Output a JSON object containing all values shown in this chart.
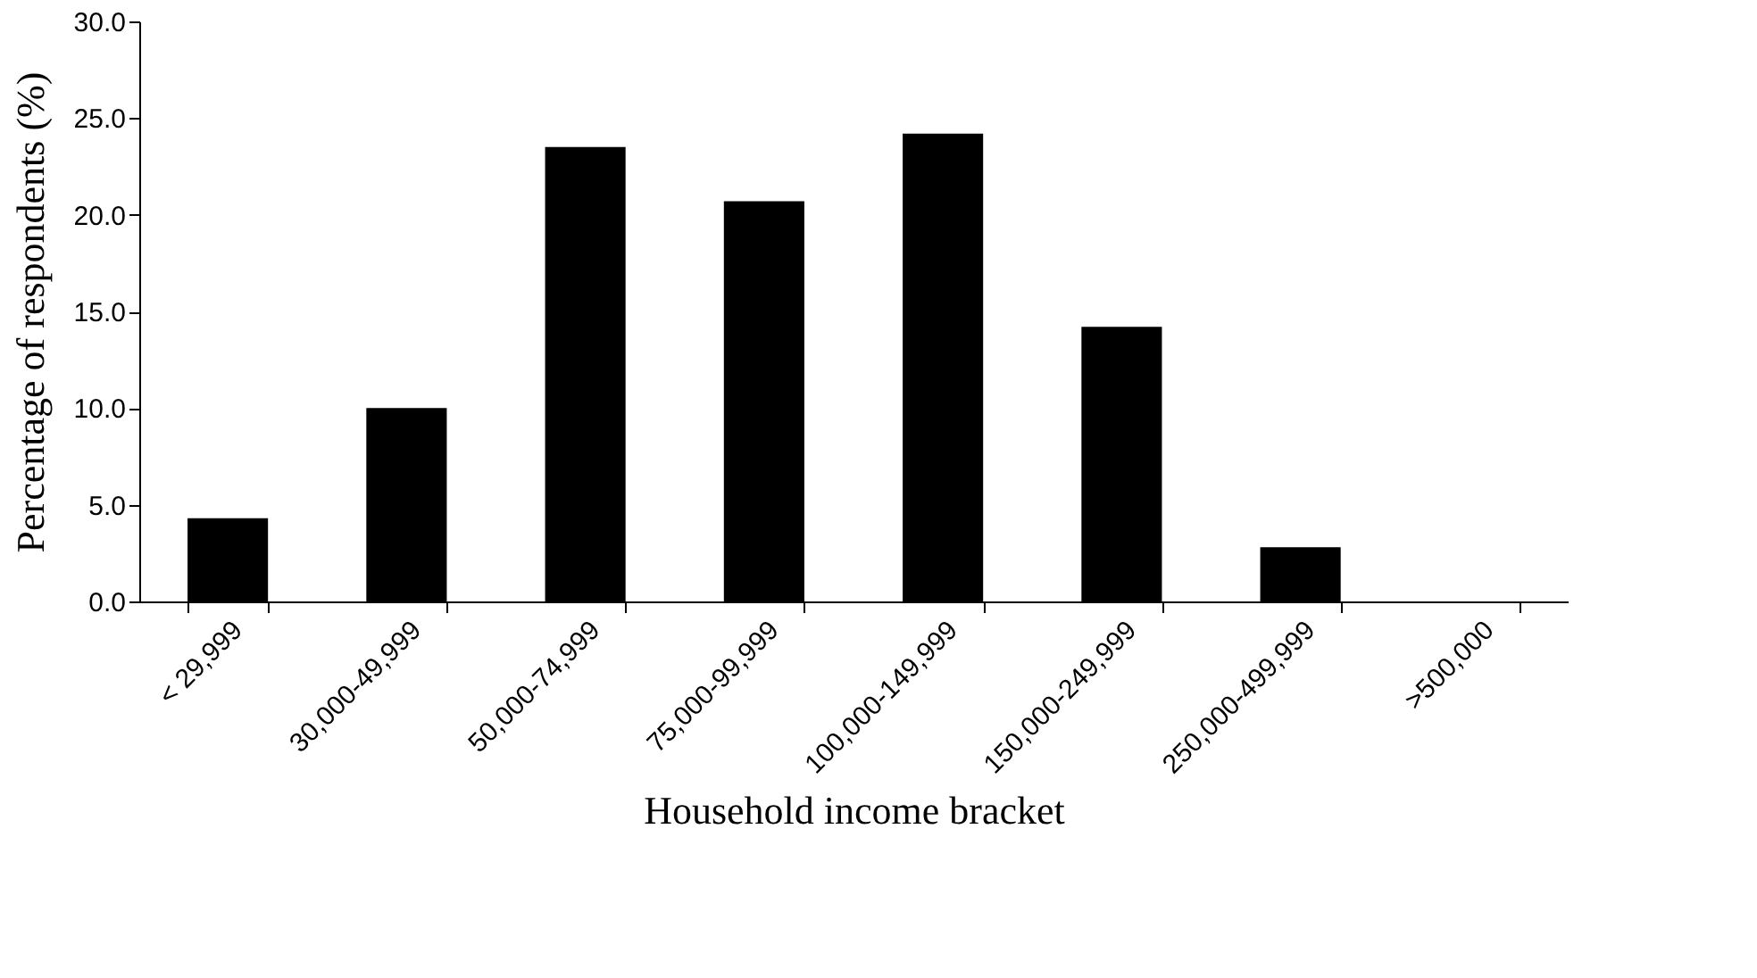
{
  "chart_data": {
    "type": "bar",
    "categories": [
      "< 29,999",
      "30,000-49,999",
      "50,000-74,999",
      "75,000-99,999",
      "100,000-149,999",
      "150,000-249,999",
      "250,000-499,999",
      ">500,000"
    ],
    "values": [
      4.3,
      10.0,
      23.5,
      20.7,
      24.2,
      14.2,
      2.8,
      0.0
    ],
    "color": "#000000",
    "xlabel": "Household income bracket",
    "ylabel": "Percentage of respondents (%)",
    "ylim": [
      0,
      30
    ],
    "yticks": [
      {
        "value": 0,
        "label": "0.0"
      },
      {
        "value": 5,
        "label": "5.0"
      },
      {
        "value": 10,
        "label": "10.0"
      },
      {
        "value": 15,
        "label": "15.0"
      },
      {
        "value": 20,
        "label": "20.0"
      },
      {
        "value": 25,
        "label": "25.0"
      },
      {
        "value": 30,
        "label": "30.0"
      }
    ],
    "grid": false
  }
}
